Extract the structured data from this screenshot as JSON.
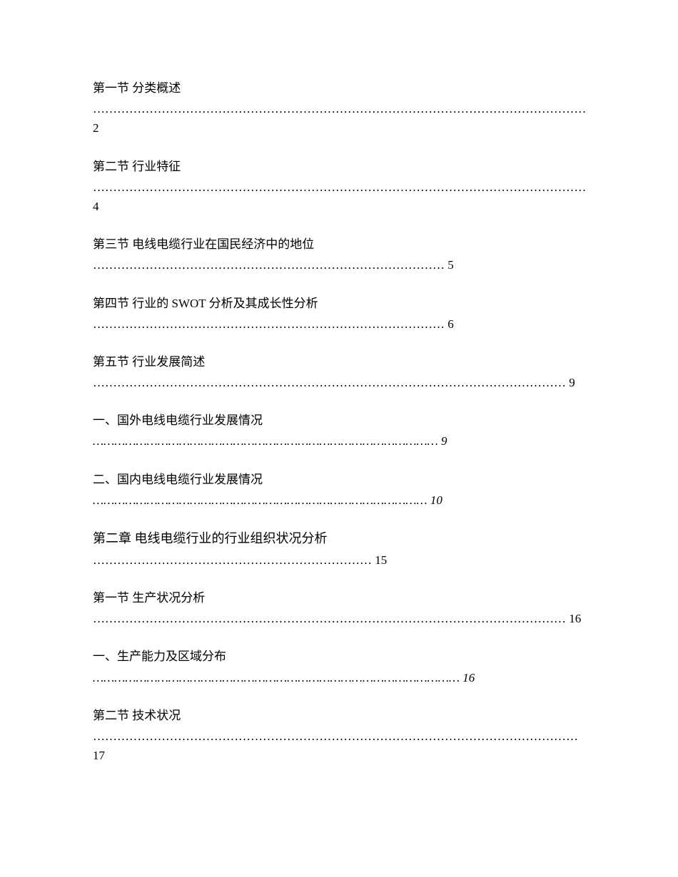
{
  "toc": {
    "entries": [
      {
        "title": "第一节 分类概述",
        "dots": "……………………………………………………………………………………………………………",
        "page": "2",
        "italic": false,
        "chapter": false
      },
      {
        "title": "第二节 行业特征",
        "dots": "……………………………………………………………………………………………………………",
        "page": "4",
        "italic": false,
        "chapter": false
      },
      {
        "title": "第三节 电线电缆行业在国民经济中的地位",
        "dots": "……………………………………………………………………………",
        "page": "5",
        "italic": false,
        "chapter": false
      },
      {
        "title": "第四节 行业的 SWOT 分析及其成长性分析",
        "dots": "……………………………………………………………………………",
        "page": "6",
        "italic": false,
        "chapter": false
      },
      {
        "title": "第五节 行业发展简述",
        "dots": "………………………………………………………………………………………………………",
        "page": "9",
        "italic": false,
        "chapter": false
      },
      {
        "title": "一、国外电线电缆行业发展情况 ",
        "dots": "……………………………………………………………………………………",
        "page": "9",
        "italic": true,
        "chapter": false
      },
      {
        "title": "二、国内电线电缆行业发展情况 ",
        "dots": "…………………………………………………………………………………",
        "page": "10",
        "italic": true,
        "chapter": false
      },
      {
        "title": "第二章 电线电缆行业的行业组织状况分析 ",
        "dots": "……………………………………………………………",
        "page": "15",
        "italic": false,
        "chapter": true
      },
      {
        "title": "第一节 生产状况分析",
        "dots": "……………………………………………………………………………………………………… ",
        "page": "16",
        "italic": false,
        "chapter": false
      },
      {
        "title": "一、生产能力及区域分布 ",
        "dots": "…………………………………………………………………………………………",
        "page": "16",
        "italic": true,
        "chapter": false
      },
      {
        "title": "第二节 技术状况",
        "dots": "…………………………………………………………………………………………………………",
        "page": "17",
        "italic": false,
        "chapter": false
      }
    ]
  }
}
